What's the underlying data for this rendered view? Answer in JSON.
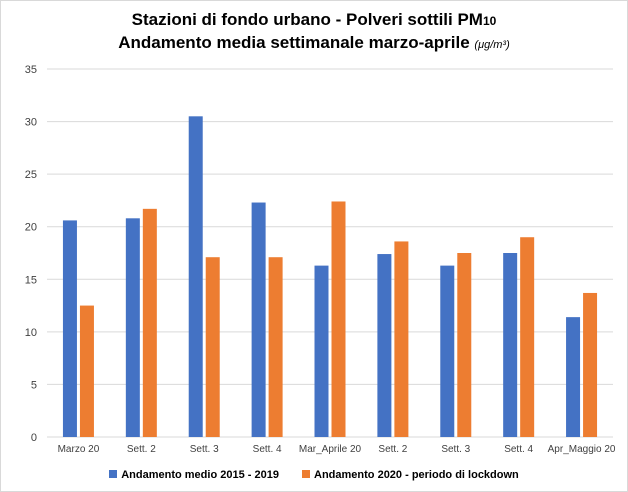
{
  "chart_data": {
    "type": "bar",
    "title_line1": "Stazioni  di fondo urbano - Polveri sottili PM",
    "title_line1_sub": "10",
    "title_line2": "Andamento media settimanale marzo-aprile",
    "title_unit": "(μg/m³)",
    "categories": [
      "Marzo 20",
      "Sett. 2",
      "Sett. 3",
      "Sett. 4",
      "Mar_Aprile 20",
      "Sett. 2",
      "Sett. 3",
      "Sett. 4",
      "Apr_Maggio 20"
    ],
    "series": [
      {
        "name": "Andamento medio 2015 - 2019",
        "color": "#4472c4",
        "values": [
          20.6,
          20.8,
          30.5,
          22.3,
          16.3,
          17.4,
          16.3,
          17.5,
          11.4
        ]
      },
      {
        "name": "Andamento 2020 - periodo di lockdown",
        "color": "#ed7d31",
        "values": [
          12.5,
          21.7,
          17.1,
          17.1,
          22.4,
          18.6,
          17.5,
          19.0,
          13.7
        ]
      }
    ],
    "yticks": [
      0,
      5,
      10,
      15,
      20,
      25,
      30,
      35
    ],
    "ylim": [
      0,
      35
    ],
    "grid": true,
    "legend": "bottom"
  }
}
